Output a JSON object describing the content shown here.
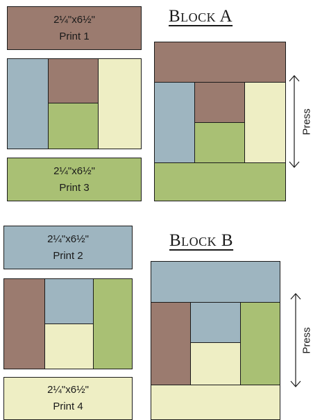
{
  "colors": {
    "brown": "#9b7b6f",
    "blue": "#9eb5c0",
    "cream": "#eeeec4",
    "green": "#a9c074",
    "outline": "#1a1a1a"
  },
  "block_a": {
    "title": "Block A",
    "strip_top": {
      "size": "2¼\"x6½\"",
      "name": "Print 1"
    },
    "strip_bottom": {
      "size": "2¼\"x6½\"",
      "name": "Print 3"
    },
    "press": "Press"
  },
  "block_b": {
    "title": "Block B",
    "strip_top": {
      "size": "2¼\"x6½\"",
      "name": "Print 2"
    },
    "strip_bottom": {
      "size": "2¼\"x6½\"",
      "name": "Print 4"
    },
    "press": "Press"
  }
}
